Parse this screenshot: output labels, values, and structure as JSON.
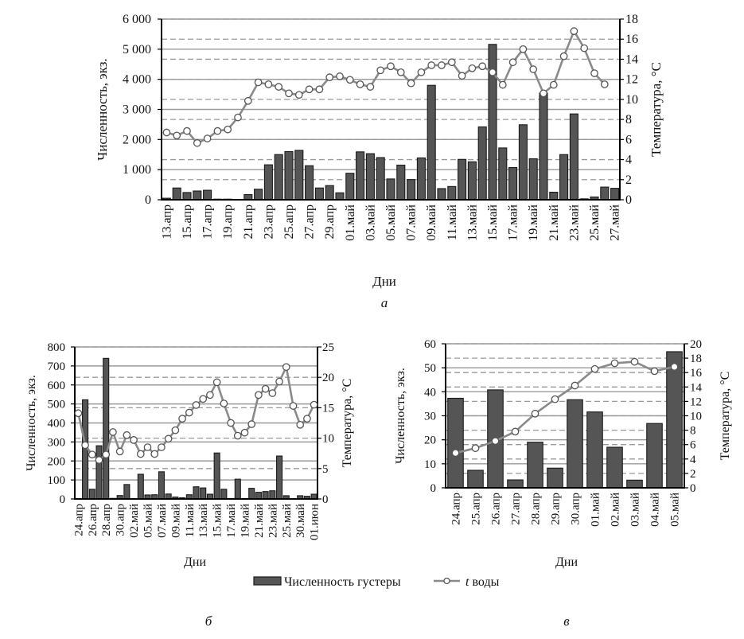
{
  "legend": {
    "bars_label": "Численность густеры",
    "line_label_italic": "t",
    "line_label": " воды"
  },
  "colors": {
    "bar": "#555555",
    "bar_stroke": "#1a1a1a",
    "line": "#8a8a8a",
    "marker_fill": "#ffffff",
    "marker_stroke": "#555555",
    "grid": "#9a9a9a"
  },
  "chart_data": [
    {
      "type": "bar+line",
      "panel_label": "а",
      "xlabel": "Дни",
      "ylabel": "Численность, экз.",
      "y2label": "Температура, °C",
      "ylim": [
        0,
        6000
      ],
      "y2lim": [
        0,
        18
      ],
      "ytick_values": [
        0,
        1000,
        2000,
        3000,
        4000,
        5000,
        6000
      ],
      "ytick_labels": [
        "0",
        "1 000",
        "2 000",
        "3 000",
        "4 000",
        "5 000",
        "6 000"
      ],
      "y2tick_values": [
        0,
        2,
        4,
        6,
        8,
        10,
        12,
        14,
        16,
        18
      ],
      "y2tick_labels": [
        "0",
        "2",
        "4",
        "6",
        "8",
        "10",
        "12",
        "14",
        "16",
        "18"
      ],
      "x_tick_labels": [
        "13.апр",
        "15.апр",
        "17.апр",
        "19.апр",
        "21.апр",
        "23.апр",
        "25.апр",
        "27.апр",
        "29.апр",
        "01.май",
        "03.май",
        "05.май",
        "07.май",
        "09.май",
        "11.май",
        "13.май",
        "15.май",
        "17.май",
        "19.май",
        "21.май",
        "23.май",
        "25.май",
        "27.май"
      ],
      "x_tick_every": 2,
      "series": [
        {
          "name": "Численность густеры",
          "kind": "bar",
          "values": [
            50,
            390,
            240,
            290,
            315,
            20,
            20,
            10,
            170,
            350,
            1160,
            1500,
            1600,
            1640,
            1130,
            390,
            470,
            230,
            880,
            1590,
            1530,
            1400,
            690,
            1150,
            670,
            1390,
            3800,
            370,
            440,
            1340,
            1260,
            2420,
            5160,
            1720,
            1070,
            2490,
            1360,
            3540,
            250,
            1500,
            2850,
            30,
            90,
            420,
            380
          ]
        },
        {
          "name": "t воды",
          "kind": "line",
          "axis": "right",
          "values": [
            6.7,
            6.4,
            6.85,
            5.65,
            6.1,
            6.85,
            7.0,
            8.2,
            9.85,
            11.7,
            11.5,
            11.25,
            10.6,
            10.45,
            11.0,
            11.0,
            12.2,
            12.3,
            11.95,
            11.5,
            11.25,
            12.9,
            13.3,
            12.7,
            11.6,
            12.7,
            13.4,
            13.4,
            13.7,
            12.35,
            13.1,
            13.3,
            12.7,
            11.45,
            13.7,
            15.0,
            13.0,
            10.6,
            11.45,
            14.3,
            16.8,
            15.1,
            12.6,
            11.5,
            null
          ]
        }
      ]
    },
    {
      "type": "bar+line",
      "panel_label": "б",
      "xlabel": "Дни",
      "ylabel": "Численность, экз.",
      "y2label": "Температура, °C",
      "ylim": [
        0,
        800
      ],
      "y2lim": [
        0,
        25
      ],
      "ytick_values": [
        0,
        100,
        200,
        300,
        400,
        500,
        600,
        700,
        800
      ],
      "ytick_labels": [
        "0",
        "100",
        "200",
        "300",
        "400",
        "500",
        "600",
        "700",
        "800"
      ],
      "y2tick_values": [
        0,
        5,
        10,
        15,
        20,
        25
      ],
      "y2tick_labels": [
        "0",
        "5",
        "10",
        "15",
        "20",
        "25"
      ],
      "x_tick_labels": [
        "24.апр",
        "26.апр",
        "28.апр",
        "30.апр",
        "02.май",
        "05.май",
        "07.май",
        "09.май",
        "11.май",
        "13.май",
        "15.май",
        "17.май",
        "19.май",
        "21.май",
        "23.май",
        "25.май",
        "30.май",
        "01.июн"
      ],
      "x_tick_every": 2,
      "series": [
        {
          "name": "Численность густеры",
          "kind": "bar",
          "values": [
            0,
            522,
            51,
            280,
            740,
            3,
            18,
            76,
            0,
            130,
            21,
            22,
            143,
            26,
            10,
            6,
            22,
            64,
            58,
            25,
            242,
            51,
            0,
            104,
            0,
            56,
            35,
            39,
            43,
            226,
            17,
            0,
            17,
            14,
            25
          ]
        },
        {
          "name": "t воды",
          "kind": "line",
          "axis": "right",
          "values": [
            14.1,
            8.85,
            7.3,
            6.4,
            7.3,
            11.0,
            7.8,
            10.5,
            9.7,
            7.4,
            8.5,
            7.4,
            8.5,
            9.9,
            11.3,
            13.2,
            14.2,
            15.45,
            16.45,
            17.1,
            19.2,
            15.7,
            12.5,
            10.4,
            10.9,
            12.3,
            17.1,
            18.1,
            17.4,
            19.3,
            21.7,
            15.3,
            12.2,
            13.2,
            15.5
          ]
        }
      ]
    },
    {
      "type": "bar+line",
      "panel_label": "в",
      "xlabel": "Дни",
      "ylabel": "Численность, экз.",
      "y2label": "Температура, °C",
      "ylim": [
        0,
        60
      ],
      "y2lim": [
        0,
        20
      ],
      "ytick_values": [
        0,
        10,
        20,
        30,
        40,
        50,
        60
      ],
      "ytick_labels": [
        "0",
        "10",
        "20",
        "30",
        "40",
        "50",
        "60"
      ],
      "y2tick_values": [
        0,
        2,
        4,
        6,
        8,
        10,
        12,
        14,
        16,
        18,
        20
      ],
      "y2tick_labels": [
        "0",
        "2",
        "4",
        "6",
        "8",
        "10",
        "12",
        "14",
        "16",
        "18",
        "20"
      ],
      "x_tick_labels": [
        "24.апр",
        "25.апр",
        "26.апр",
        "27.апр",
        "28.апр",
        "29.апр",
        "30.апр",
        "01.май",
        "02.май",
        "03.май",
        "04.май",
        "05.май"
      ],
      "x_tick_every": 1,
      "series": [
        {
          "name": "Численность густеры",
          "kind": "bar",
          "values": [
            37.3,
            7.3,
            40.8,
            3.3,
            19.0,
            8.2,
            36.7,
            31.6,
            16.9,
            3.2,
            26.8,
            56.7
          ]
        },
        {
          "name": "t воды",
          "kind": "line",
          "axis": "right",
          "values": [
            4.84,
            5.5,
            6.5,
            7.8,
            10.3,
            12.3,
            14.2,
            16.5,
            17.3,
            17.5,
            16.2,
            16.8
          ]
        }
      ]
    }
  ]
}
